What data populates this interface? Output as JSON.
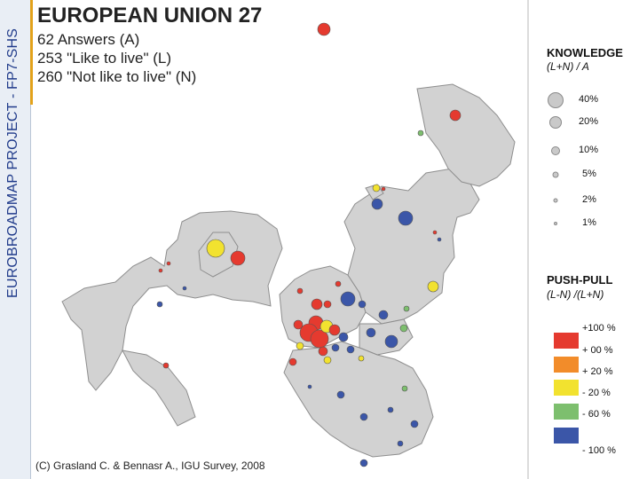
{
  "vertical_title": "EUROBROADMAP PROJECT - FP7-SHS",
  "title": "EUROPEAN UNION 27",
  "counts": [
    "62 Answers (A)",
    "253 \"Like to live\" (L)",
    "260 \"Not like to live\" (N)"
  ],
  "credit": "(C) Grasland C. & Bennasr A., IGU Survey, 2008",
  "legend": {
    "knowledge": {
      "title": "KNOWLEDGE",
      "subtitle": "(L+N) / A",
      "sizes": [
        "40%",
        "20%",
        "10%",
        "5%",
        "2%",
        "1%"
      ]
    },
    "pushpull": {
      "title": "PUSH-PULL",
      "subtitle": "(L-N) /(L+N)",
      "classes": [
        {
          "label": "+100 %",
          "color": "#e53a2f"
        },
        {
          "label": "+ 00 %",
          "color": "#f28c2a"
        },
        {
          "label": "+ 20 %",
          "color": "#f2e22f"
        },
        {
          "label": "- 20 %",
          "color": "#7dbf6e"
        },
        {
          "label": "- 60 %",
          "color": "#3b56a8"
        },
        {
          "label": "- 100 %",
          "color": ""
        }
      ]
    }
  },
  "colors": {
    "land": "#d2d2d2",
    "land_stroke": "#8e8e8e",
    "red": "#e53a2f",
    "yellow": "#f2e22f",
    "green": "#7dbf6e",
    "blue": "#3b56a8"
  }
}
